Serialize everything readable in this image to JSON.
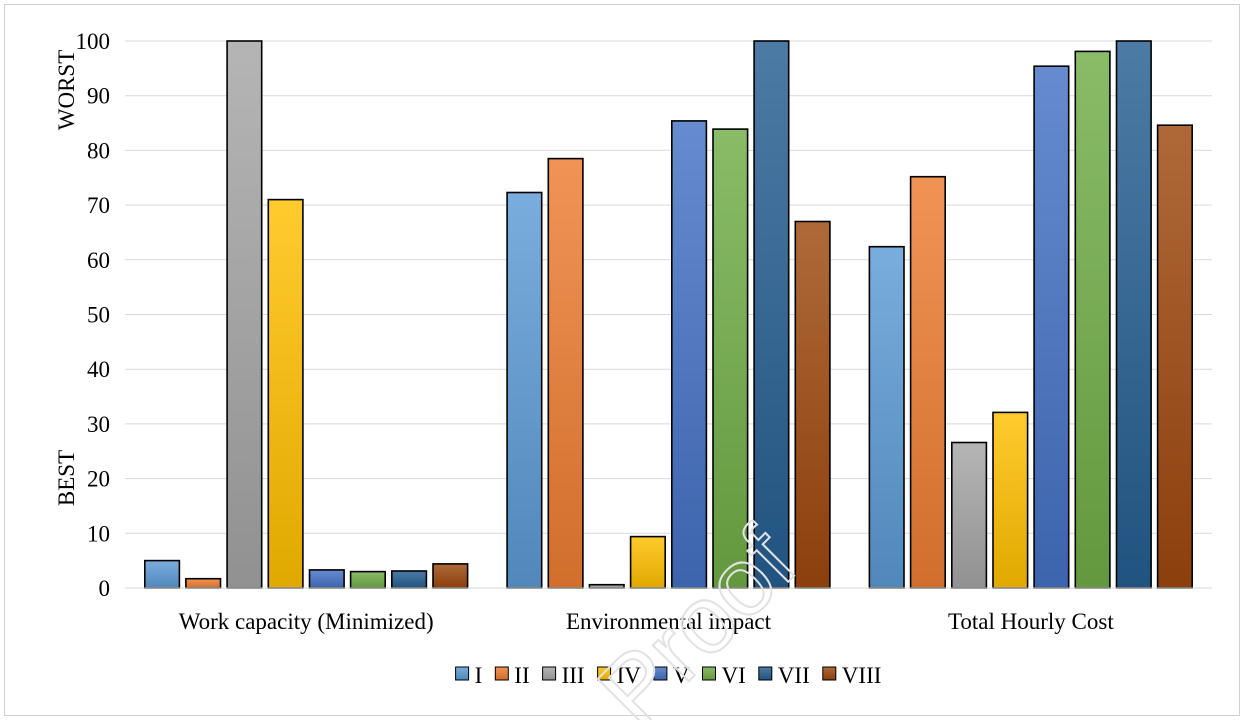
{
  "chart_data": {
    "type": "bar",
    "categories": [
      "Work capacity (Minimized)",
      "Environmental impact",
      "Total Hourly Cost"
    ],
    "series": [
      {
        "name": "I",
        "values": [
          5.0,
          72.3,
          62.4
        ],
        "color": "#5b9bd5"
      },
      {
        "name": "II",
        "values": [
          1.7,
          78.5,
          75.2
        ],
        "color": "#ed7d31"
      },
      {
        "name": "III",
        "values": [
          100,
          0.6,
          26.6
        ],
        "color": "#a5a5a5"
      },
      {
        "name": "IV",
        "values": [
          71.0,
          9.4,
          32.1
        ],
        "color": "#ffc000"
      },
      {
        "name": "V",
        "values": [
          3.3,
          85.4,
          95.4
        ],
        "color": "#4472c4"
      },
      {
        "name": "VI",
        "values": [
          3.0,
          83.9,
          98.1
        ],
        "color": "#70ad47"
      },
      {
        "name": "VII",
        "values": [
          3.1,
          100,
          100
        ],
        "color": "#255e91"
      },
      {
        "name": "VIII",
        "values": [
          4.4,
          67.0,
          84.6
        ],
        "color": "#9e480e"
      }
    ],
    "ylim": [
      0,
      100
    ],
    "yticks": [
      0,
      10,
      20,
      30,
      40,
      50,
      60,
      70,
      80,
      90,
      100
    ],
    "grid": true,
    "legend_position": "bottom",
    "side_labels": {
      "top": "WORST",
      "bottom": "BEST"
    },
    "watermark": "Proof"
  }
}
